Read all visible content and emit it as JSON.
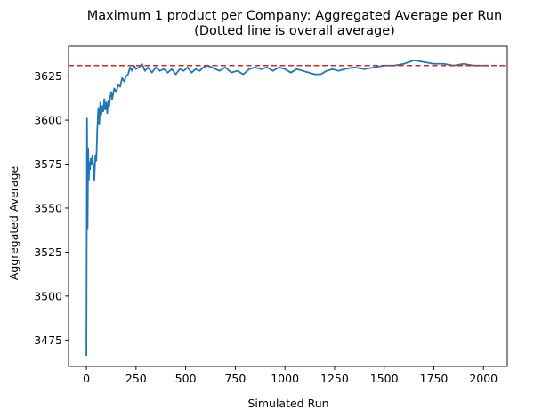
{
  "chart_data": {
    "type": "line",
    "title": "Maximum 1 product per Company: Aggregated Average per Run",
    "subtitle": "(Dotted line is overall average)",
    "xlabel": "Simulated Run",
    "ylabel": "Aggregated Average",
    "xlim": [
      -90,
      2120
    ],
    "ylim": [
      3460,
      3642
    ],
    "xticks": [
      0,
      250,
      500,
      750,
      1000,
      1250,
      1500,
      1750,
      2000
    ],
    "yticks": [
      3475,
      3500,
      3525,
      3550,
      3575,
      3600,
      3625
    ],
    "grid": false,
    "line_color": "#1f77b4",
    "reference_line": {
      "y": 3631,
      "style": "dashed",
      "color": "#d62728"
    },
    "series": [
      {
        "x": [
          0,
          3,
          6,
          9,
          12,
          15,
          18,
          22,
          26,
          30,
          35,
          40,
          45,
          50,
          55,
          60,
          65,
          70,
          75,
          80,
          85,
          90,
          95,
          100,
          105,
          110,
          115,
          120,
          125,
          130,
          140,
          150,
          160,
          170,
          180,
          190,
          200,
          210,
          220,
          230,
          240,
          250,
          265,
          280,
          295,
          310,
          330,
          350,
          370,
          390,
          410,
          430,
          450,
          470,
          490,
          510,
          530,
          550,
          570,
          590,
          610,
          630,
          650,
          670,
          700,
          730,
          760,
          790,
          820,
          850,
          880,
          910,
          940,
          970,
          1000,
          1030,
          1060,
          1090,
          1120,
          1150,
          1180,
          1210,
          1240,
          1270,
          1300,
          1350,
          1400,
          1450,
          1500,
          1550,
          1600,
          1650,
          1700,
          1750,
          1800,
          1850,
          1900,
          1950,
          2000,
          2030
        ],
        "values": [
          3466,
          3601,
          3538,
          3584,
          3566,
          3576,
          3572,
          3578,
          3575,
          3580,
          3573,
          3566,
          3580,
          3577,
          3595,
          3607,
          3598,
          3610,
          3603,
          3608,
          3605,
          3612,
          3606,
          3610,
          3604,
          3611,
          3608,
          3613,
          3616,
          3612,
          3618,
          3616,
          3620,
          3619,
          3624,
          3622,
          3625,
          3626,
          3630,
          3628,
          3631,
          3629,
          3630,
          3632,
          3628,
          3630,
          3627,
          3630,
          3628,
          3629,
          3627,
          3629,
          3626,
          3629,
          3628,
          3630,
          3627,
          3629,
          3628,
          3630,
          3631,
          3630,
          3629,
          3628,
          3630,
          3627,
          3628,
          3626,
          3629,
          3630,
          3629,
          3630,
          3628,
          3630,
          3629,
          3627,
          3629,
          3628,
          3627,
          3626,
          3626,
          3628,
          3629,
          3628,
          3629,
          3630,
          3629,
          3630,
          3631,
          3631,
          3632,
          3634,
          3633,
          3632,
          3632,
          3631,
          3632,
          3631,
          3631,
          3631
        ]
      }
    ]
  }
}
